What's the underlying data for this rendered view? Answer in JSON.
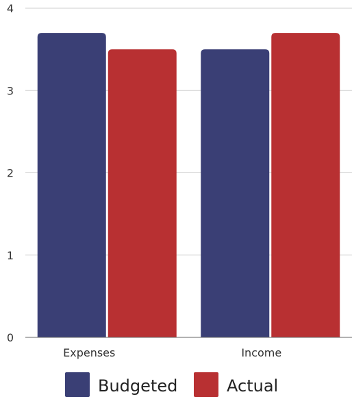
{
  "chart_data": {
    "type": "bar",
    "title": "",
    "xlabel": "",
    "ylabel": "",
    "categories": [
      "Expenses",
      "Income"
    ],
    "series": [
      {
        "name": "Budgeted",
        "values": [
          3.7,
          3.5
        ],
        "color": "#3a3f75"
      },
      {
        "name": "Actual",
        "values": [
          3.5,
          3.7
        ],
        "color": "#b83032"
      }
    ],
    "ylim": [
      0,
      4
    ],
    "yticks": [
      "0",
      "1",
      "2",
      "3",
      "4"
    ],
    "grid": true,
    "legend": "bottom"
  }
}
